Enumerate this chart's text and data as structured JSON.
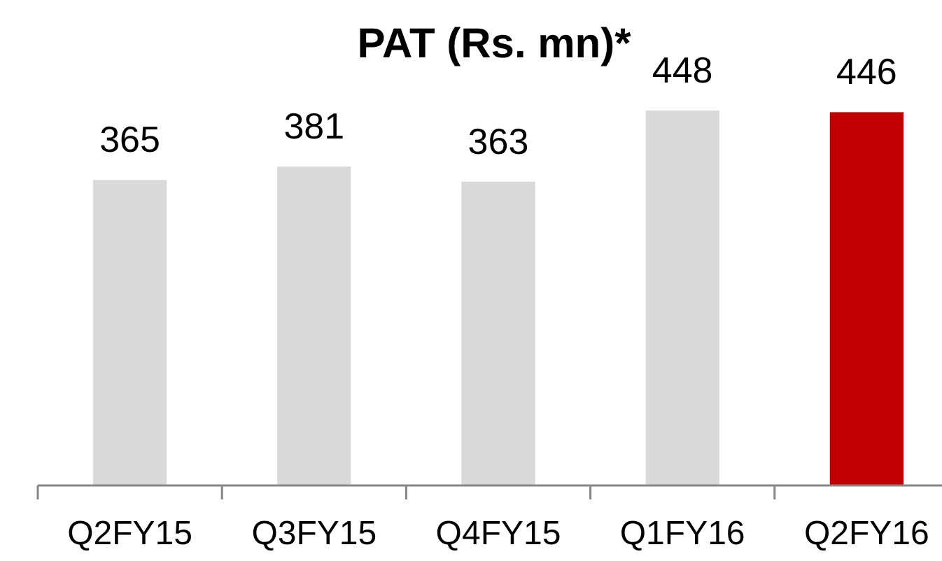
{
  "chart_data": {
    "type": "bar",
    "title": "PAT (Rs. mn)*",
    "categories": [
      "Q2FY15",
      "Q3FY15",
      "Q4FY15",
      "Q1FY16",
      "Q2FY16"
    ],
    "values": [
      365,
      381,
      363,
      448,
      446
    ],
    "colors": [
      "#d9d9d9",
      "#d9d9d9",
      "#d9d9d9",
      "#d9d9d9",
      "#c00000"
    ],
    "data_labels": true
  }
}
